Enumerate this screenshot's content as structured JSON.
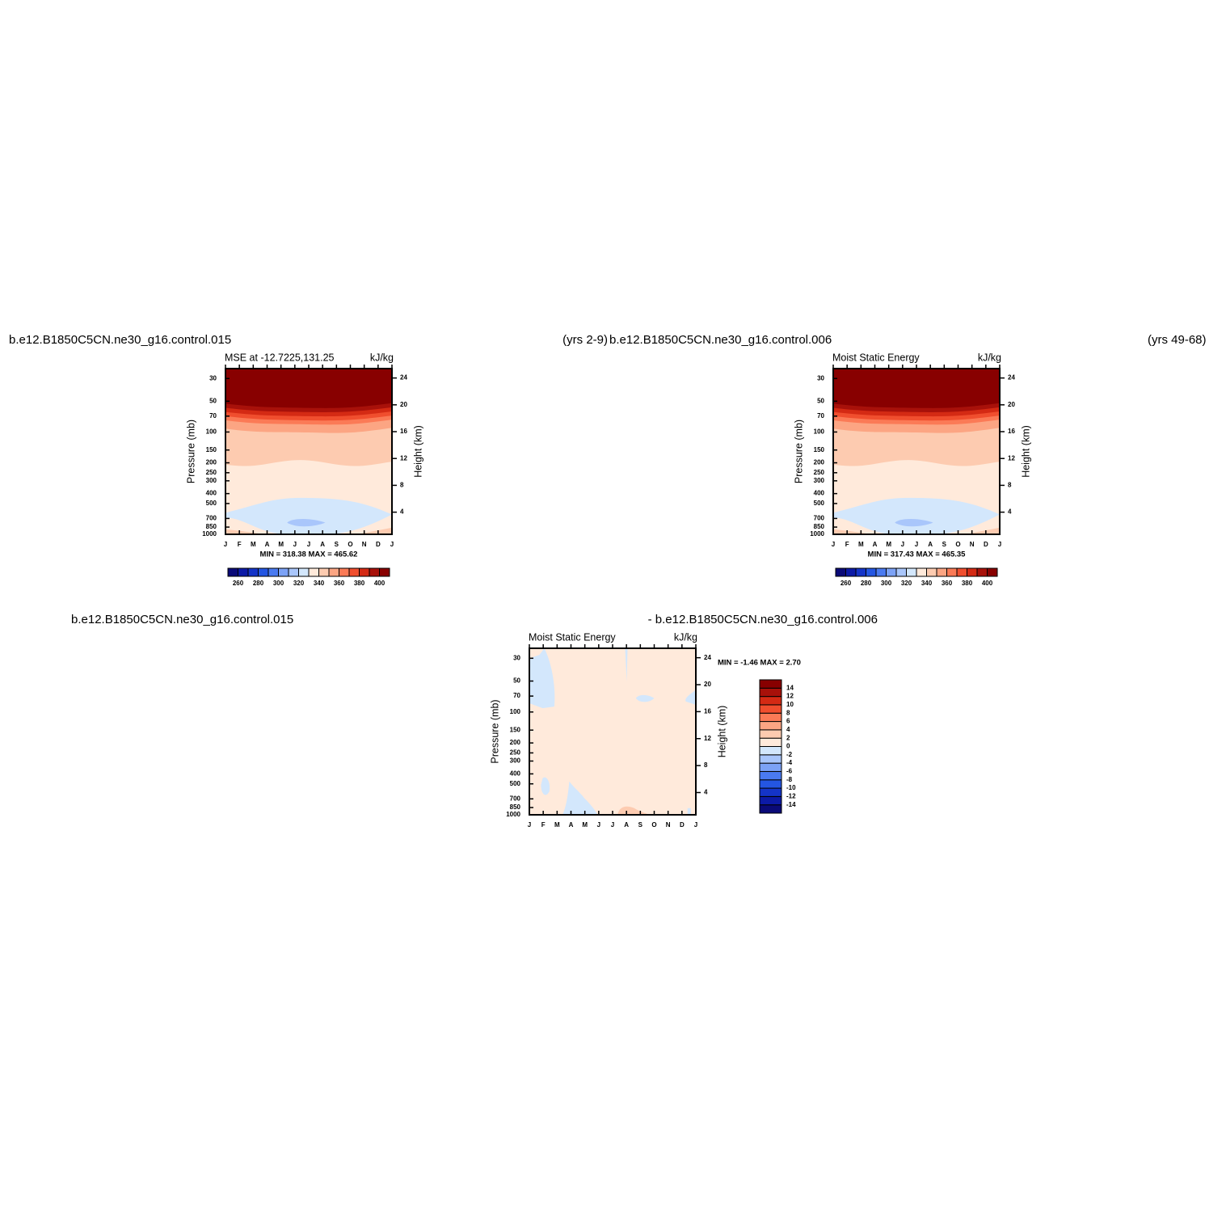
{
  "chart_data": [
    {
      "type": "contour",
      "title_left": "b.e12.B1850C5CN.ne30_g16.control.015",
      "title_right": "(yrs 2-9)",
      "plot_title": "MSE at -12.7225,131.25",
      "units": "kJ/kg",
      "stats": "MIN = 318.38 MAX = 465.62",
      "ylabel": "Pressure (mb)",
      "y2label": "Height (km)",
      "categories": [
        "J",
        "F",
        "M",
        "A",
        "M",
        "J",
        "J",
        "A",
        "S",
        "O",
        "N",
        "D",
        "J"
      ],
      "log_y": true,
      "ylim": [
        1000,
        24
      ],
      "yticks": [
        30,
        50,
        70,
        100,
        150,
        200,
        250,
        300,
        400,
        500,
        700,
        850,
        1000
      ],
      "y2lim": [
        0.7,
        25.4
      ],
      "y2ticks": [
        4,
        8,
        12,
        16,
        20,
        24
      ],
      "colorbar": {
        "orientation": "horizontal",
        "clim": [
          250,
          410
        ],
        "labels": [
          260,
          280,
          300,
          320,
          340,
          360,
          380,
          400
        ],
        "colors": [
          "#0a0a78",
          "#0c1aa6",
          "#1434c8",
          "#2456e2",
          "#4a7af0",
          "#7ca2f6",
          "#a9c6fb",
          "#d3e7fc",
          "#ffeadb",
          "#fdcbb0",
          "#fca583",
          "#fb7a56",
          "#f04e2e",
          "#d42a14",
          "#a8110a",
          "#880000"
        ]
      }
    },
    {
      "type": "contour",
      "title_left": "b.e12.B1850C5CN.ne30_g16.control.006",
      "title_right": "(yrs 49-68)",
      "plot_title": "Moist Static Energy",
      "units": "kJ/kg",
      "stats": "MIN = 317.43 MAX = 465.35",
      "ylabel": "Pressure (mb)",
      "y2label": "Height (km)",
      "categories": [
        "J",
        "F",
        "M",
        "A",
        "M",
        "J",
        "J",
        "A",
        "S",
        "O",
        "N",
        "D",
        "J"
      ],
      "log_y": true,
      "ylim": [
        1000,
        24
      ],
      "yticks": [
        30,
        50,
        70,
        100,
        150,
        200,
        250,
        300,
        400,
        500,
        700,
        850,
        1000
      ],
      "y2lim": [
        0.7,
        25.4
      ],
      "y2ticks": [
        4,
        8,
        12,
        16,
        20,
        24
      ],
      "colorbar": {
        "orientation": "horizontal",
        "clim": [
          250,
          410
        ],
        "labels": [
          260,
          280,
          300,
          320,
          340,
          360,
          380,
          400
        ],
        "colors": [
          "#0a0a78",
          "#0c1aa6",
          "#1434c8",
          "#2456e2",
          "#4a7af0",
          "#7ca2f6",
          "#a9c6fb",
          "#d3e7fc",
          "#ffeadb",
          "#fdcbb0",
          "#fca583",
          "#fb7a56",
          "#f04e2e",
          "#d42a14",
          "#a8110a",
          "#880000"
        ]
      }
    },
    {
      "type": "contour",
      "title_left": "b.e12.B1850C5CN.ne30_g16.control.015",
      "title_right": "- b.e12.B1850C5CN.ne30_g16.control.006",
      "plot_title": "Moist Static Energy",
      "units": "kJ/kg",
      "stats": "MIN =   -1.46 MAX =    2.70",
      "ylabel": "Pressure (mb)",
      "y2label": "Height (km)",
      "categories": [
        "J",
        "F",
        "M",
        "A",
        "M",
        "J",
        "J",
        "A",
        "S",
        "O",
        "N",
        "D",
        "J"
      ],
      "log_y": true,
      "ylim": [
        1000,
        24
      ],
      "yticks": [
        30,
        50,
        70,
        100,
        150,
        200,
        250,
        300,
        400,
        500,
        700,
        850,
        1000
      ],
      "y2lim": [
        0.7,
        25.4
      ],
      "y2ticks": [
        4,
        8,
        12,
        16,
        20,
        24
      ],
      "colorbar": {
        "orientation": "vertical",
        "clim": [
          -16,
          16
        ],
        "labels": [
          -14,
          -12,
          -10,
          -8,
          -6,
          -4,
          -2,
          0,
          2,
          4,
          6,
          8,
          10,
          12,
          14
        ],
        "colors": [
          "#0a0a78",
          "#0c1aa6",
          "#1434c8",
          "#2456e2",
          "#4a7af0",
          "#7ca2f6",
          "#a9c6fb",
          "#d3e7fc",
          "#ffeadb",
          "#fdcbb0",
          "#fca583",
          "#fb7a56",
          "#f04e2e",
          "#d42a14",
          "#a8110a",
          "#880000"
        ]
      }
    }
  ]
}
